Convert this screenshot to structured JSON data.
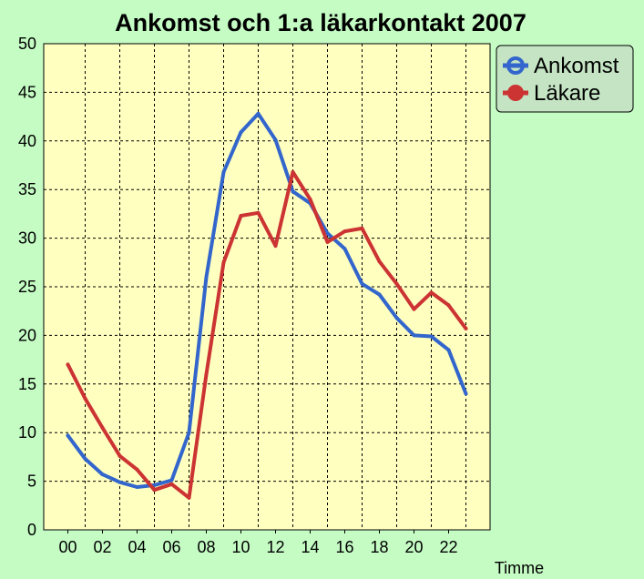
{
  "chart_data": {
    "type": "line",
    "title": "Ankomst och 1:a läkarkontakt 2007",
    "xlabel": "Timme",
    "ylabel": "",
    "ylim": [
      0,
      50
    ],
    "yticks": [
      0,
      5,
      10,
      15,
      20,
      25,
      30,
      35,
      40,
      45,
      50
    ],
    "grid": true,
    "legend_position": "top-right",
    "x": [
      0,
      1,
      2,
      3,
      4,
      5,
      6,
      7,
      8,
      9,
      10,
      11,
      12,
      13,
      14,
      15,
      16,
      17,
      18,
      19,
      20,
      21,
      22,
      23
    ],
    "xtick_labels": [
      "00",
      "02",
      "04",
      "06",
      "08",
      "10",
      "12",
      "14",
      "16",
      "18",
      "20",
      "22"
    ],
    "xtick_positions": [
      0,
      2,
      4,
      6,
      8,
      10,
      12,
      14,
      16,
      18,
      20,
      22
    ],
    "series": [
      {
        "name": "Ankomst",
        "color": "#3366cc",
        "values": [
          9.7,
          7.3,
          5.7,
          4.9,
          4.4,
          4.6,
          5.1,
          10.0,
          26.0,
          36.8,
          40.9,
          42.8,
          40.1,
          34.8,
          33.6,
          30.5,
          28.9,
          25.3,
          24.2,
          21.8,
          20.0,
          19.9,
          18.5,
          14.0
        ]
      },
      {
        "name": "Läkare",
        "color": "#cc3333",
        "values": [
          17.0,
          13.5,
          10.5,
          7.6,
          6.2,
          4.1,
          4.7,
          3.3,
          16.0,
          27.5,
          32.3,
          32.6,
          29.2,
          36.8,
          34.0,
          29.6,
          30.7,
          31.0,
          27.6,
          25.3,
          22.7,
          24.4,
          23.1,
          20.7
        ]
      }
    ]
  }
}
